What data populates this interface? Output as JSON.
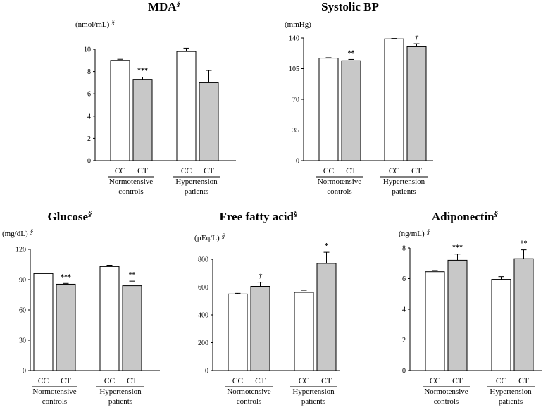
{
  "chart_data": [
    {
      "type": "bar",
      "title": "MDA",
      "title_mark": "§",
      "ylabel": "(nmol/mL)",
      "ylabel_mark": "§",
      "ylim": [
        0,
        10
      ],
      "yticks": [
        0,
        2,
        4,
        6,
        8,
        10
      ],
      "groups": [
        {
          "line1": "Normotensive",
          "line2": "controls"
        },
        {
          "line1": "Hypertension",
          "line2": "patients"
        }
      ],
      "categories": [
        "CC",
        "CT",
        "CC",
        "CT"
      ],
      "values": [
        9.0,
        7.3,
        9.8,
        7.0
      ],
      "errors": [
        0.1,
        0.2,
        0.3,
        1.1
      ],
      "fills": [
        "#ffffff",
        "#c8c8c8",
        "#ffffff",
        "#c8c8c8"
      ],
      "annotations": [
        "",
        "***",
        "",
        ""
      ]
    },
    {
      "type": "bar",
      "title": "Systolic BP",
      "title_mark": "",
      "ylabel": "(mmHg)",
      "ylabel_mark": "",
      "ylim": [
        0,
        140
      ],
      "yticks": [
        0,
        35,
        70,
        105,
        140
      ],
      "groups": [
        {
          "line1": "Normotensive",
          "line2": "controls"
        },
        {
          "line1": "Hypertension",
          "line2": "patients"
        }
      ],
      "categories": [
        "CC",
        "CT",
        "CC",
        "CT"
      ],
      "values": [
        117,
        114,
        139,
        130
      ],
      "errors": [
        0.5,
        1.5,
        0.5,
        3.5
      ],
      "fills": [
        "#ffffff",
        "#c8c8c8",
        "#ffffff",
        "#c8c8c8"
      ],
      "annotations": [
        "",
        "**",
        "",
        "†"
      ]
    },
    {
      "type": "bar",
      "title": "Glucose",
      "title_mark": "§",
      "ylabel": "(mg/dL)",
      "ylabel_mark": "§",
      "ylim": [
        0,
        120
      ],
      "yticks": [
        0,
        30,
        60,
        90,
        120
      ],
      "groups": [
        {
          "line1": "Normotensive",
          "line2": "controls"
        },
        {
          "line1": "Hypertension",
          "line2": "patients"
        }
      ],
      "categories": [
        "CC",
        "CT",
        "CC",
        "CT"
      ],
      "values": [
        96,
        85.5,
        103,
        84
      ],
      "errors": [
        0.6,
        0.8,
        1.3,
        4.5
      ],
      "fills": [
        "#ffffff",
        "#c8c8c8",
        "#ffffff",
        "#c8c8c8"
      ],
      "annotations": [
        "",
        "***",
        "",
        "**"
      ]
    },
    {
      "type": "bar",
      "title": "Free fatty acid",
      "title_mark": "§",
      "ylabel": "(µEq/L)",
      "ylabel_mark": "§",
      "ylim": [
        0,
        800
      ],
      "yticks": [
        0,
        200,
        400,
        600,
        800
      ],
      "groups": [
        {
          "line1": "Normotensive",
          "line2": "controls"
        },
        {
          "line1": "Hypertension",
          "line2": "patients"
        }
      ],
      "categories": [
        "CC",
        "CT",
        "CC",
        "CT"
      ],
      "values": [
        550,
        605,
        562,
        770
      ],
      "errors": [
        5,
        30,
        15,
        80
      ],
      "fills": [
        "#ffffff",
        "#c8c8c8",
        "#ffffff",
        "#c8c8c8"
      ],
      "annotations": [
        "",
        "†",
        "",
        "*"
      ]
    },
    {
      "type": "bar",
      "title": "Adiponectin",
      "title_mark": "§",
      "ylabel": "(ng/mL)",
      "ylabel_mark": "§",
      "ylim": [
        0,
        8
      ],
      "yticks": [
        0,
        2,
        4,
        6,
        8
      ],
      "groups": [
        {
          "line1": "Normotensive",
          "line2": "controls"
        },
        {
          "line1": "Hypertension",
          "line2": "patients"
        }
      ],
      "categories": [
        "CC",
        "CT",
        "CC",
        "CT"
      ],
      "values": [
        6.45,
        7.2,
        5.95,
        7.3
      ],
      "errors": [
        0.08,
        0.4,
        0.18,
        0.58
      ],
      "fills": [
        "#ffffff",
        "#c8c8c8",
        "#ffffff",
        "#c8c8c8"
      ],
      "annotations": [
        "",
        "***",
        "",
        "**"
      ]
    }
  ]
}
